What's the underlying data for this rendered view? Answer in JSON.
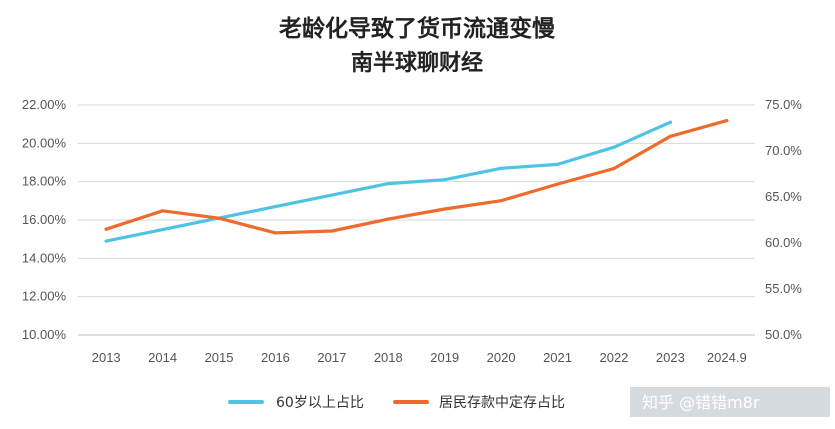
{
  "chart_data": {
    "type": "line",
    "title": "老龄化导致了货币流通变慢",
    "subtitle": "南半球聊财经",
    "categories": [
      "2013",
      "2014",
      "2015",
      "2016",
      "2017",
      "2018",
      "2019",
      "2020",
      "2021",
      "2022",
      "2023",
      "2024.9"
    ],
    "y_left": {
      "ylim": [
        10,
        22
      ],
      "ticks": [
        "10.00%",
        "12.00%",
        "14.00%",
        "16.00%",
        "18.00%",
        "20.00%",
        "22.00%"
      ]
    },
    "y_right": {
      "ylim": [
        50,
        75
      ],
      "ticks": [
        "50.0%",
        "55.0%",
        "60.0%",
        "65.0%",
        "70.0%",
        "75.0%"
      ]
    },
    "series": [
      {
        "name": "60岁以上占比",
        "axis": "left",
        "color": "#4fc3e3",
        "values": [
          14.9,
          15.5,
          16.1,
          16.7,
          17.3,
          17.9,
          18.1,
          18.7,
          18.9,
          19.8,
          21.1,
          null
        ]
      },
      {
        "name": "居民存款中定存占比",
        "axis": "right",
        "color": "#ef6b2b",
        "values": [
          61.5,
          63.5,
          62.7,
          61.1,
          61.3,
          62.6,
          63.7,
          64.6,
          66.4,
          68.1,
          71.6,
          73.3
        ]
      }
    ],
    "legend_position": "bottom",
    "grid": true
  },
  "watermark": "知乎 @错错m8r"
}
